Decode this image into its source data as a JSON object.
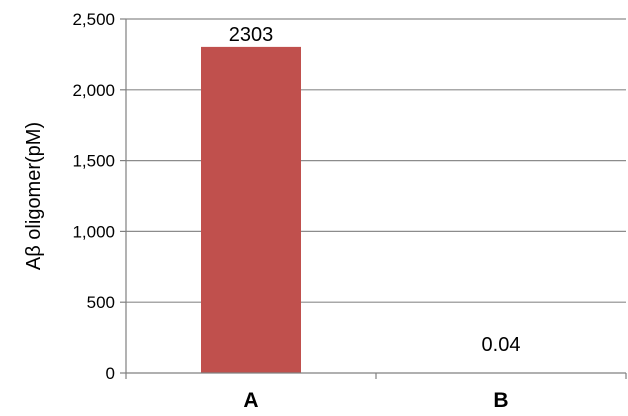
{
  "chart_data": {
    "type": "bar",
    "title": "",
    "xlabel": "",
    "ylabel": "Aβ oligomer(pM)",
    "categories": [
      "A",
      "B"
    ],
    "values": [
      2303,
      0.04
    ],
    "data_labels": [
      "2303",
      "0.04"
    ],
    "ylim": [
      0,
      2500
    ],
    "yticks": [
      0,
      500,
      1000,
      1500,
      2000,
      2500
    ],
    "ytick_labels": [
      "0",
      "500",
      "1,000",
      "1,500",
      "2,000",
      "2,500"
    ],
    "grid": true,
    "legend": "none",
    "bar_color": "#c0504d",
    "grid_color": "#8c8c8c",
    "axis_color": "#808080"
  }
}
